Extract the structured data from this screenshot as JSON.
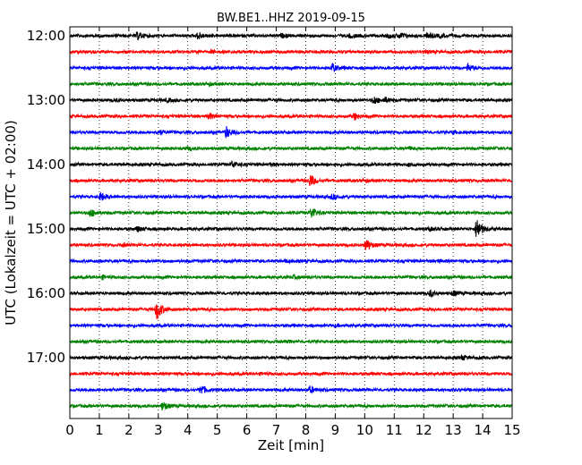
{
  "chart_data": {
    "type": "line",
    "title": "BW.BE1..HHZ 2019-09-15",
    "xlabel": "Zeit  [min]",
    "ylabel": "UTC (Lokalzeit = UTC + 02:00)",
    "xlim": [
      0,
      15
    ],
    "x_ticks": [
      "0",
      "1",
      "2",
      "3",
      "4",
      "5",
      "6",
      "7",
      "8",
      "9",
      "10",
      "11",
      "12",
      "13",
      "14",
      "15"
    ],
    "y_ticks": [
      {
        "label": "12:00",
        "hour": 12.0
      },
      {
        "label": "13:00",
        "hour": 13.0
      },
      {
        "label": "14:00",
        "hour": 14.0
      },
      {
        "label": "15:00",
        "hour": 15.0
      },
      {
        "label": "16:00",
        "hour": 16.0
      },
      {
        "label": "17:00",
        "hour": 17.0
      }
    ],
    "grid": "vertical dotted at each minute",
    "line_colors": [
      "#000000",
      "#ff0000",
      "#0000ff",
      "#008000"
    ],
    "series": [
      {
        "start": "12:00",
        "events": [
          [
            2.3,
            0.5
          ],
          [
            4.35,
            0.5
          ],
          [
            7.2,
            0.2
          ],
          [
            9.5,
            0.25
          ],
          [
            10.8,
            0.3
          ],
          [
            11.2,
            0.4
          ],
          [
            12.15,
            0.45
          ],
          [
            12.6,
            0.2
          ]
        ]
      },
      {
        "start": "12:15",
        "events": [
          [
            4.8,
            0.15
          ],
          [
            12.0,
            0.1
          ]
        ]
      },
      {
        "start": "12:30",
        "events": [
          [
            8.9,
            0.55
          ],
          [
            13.5,
            0.5
          ]
        ]
      },
      {
        "start": "12:45",
        "events": [
          [
            4.7,
            0.15
          ]
        ]
      },
      {
        "start": "13:00",
        "events": [
          [
            1.5,
            0.15
          ],
          [
            3.3,
            0.2
          ],
          [
            10.3,
            0.6
          ],
          [
            10.7,
            0.3
          ]
        ]
      },
      {
        "start": "13:15",
        "events": [
          [
            4.7,
            0.45
          ],
          [
            9.65,
            0.45
          ]
        ]
      },
      {
        "start": "13:30",
        "events": [
          [
            3.0,
            0.35
          ],
          [
            5.3,
            0.75
          ],
          [
            13.0,
            0.15
          ]
        ]
      },
      {
        "start": "13:45",
        "events": [
          [
            4.0,
            0.15
          ],
          [
            11.5,
            0.15
          ]
        ]
      },
      {
        "start": "14:00",
        "events": [
          [
            5.5,
            0.45
          ],
          [
            6.8,
            0.2
          ],
          [
            11.5,
            0.15
          ]
        ]
      },
      {
        "start": "14:15",
        "events": [
          [
            8.15,
            0.9
          ],
          [
            10.0,
            0.15
          ]
        ]
      },
      {
        "start": "14:30",
        "events": [
          [
            1.05,
            0.55
          ],
          [
            8.9,
            0.35
          ]
        ]
      },
      {
        "start": "14:45",
        "events": [
          [
            0.7,
            0.55
          ],
          [
            8.2,
            0.8
          ]
        ]
      },
      {
        "start": "15:00",
        "events": [
          [
            2.3,
            0.35
          ],
          [
            13.8,
            1.6
          ],
          [
            12.2,
            0.2
          ]
        ]
      },
      {
        "start": "15:15",
        "events": [
          [
            10.05,
            0.85
          ],
          [
            1.8,
            0.15
          ]
        ]
      },
      {
        "start": "15:30",
        "events": [
          [
            7.3,
            0.15
          ],
          [
            12.5,
            0.15
          ]
        ]
      },
      {
        "start": "15:45",
        "events": [
          [
            1.1,
            0.2
          ],
          [
            7.6,
            0.15
          ]
        ]
      },
      {
        "start": "16:00",
        "events": [
          [
            12.2,
            0.45
          ],
          [
            13.0,
            0.35
          ]
        ]
      },
      {
        "start": "16:15",
        "events": [
          [
            2.95,
            1.5
          ]
        ]
      },
      {
        "start": "16:30",
        "events": [
          [
            9.0,
            0.1
          ]
        ]
      },
      {
        "start": "16:45",
        "events": [
          [
            7.4,
            0.1
          ]
        ]
      },
      {
        "start": "17:00",
        "events": [
          [
            13.3,
            0.3
          ]
        ]
      },
      {
        "start": "17:15",
        "events": [
          [
            6.5,
            0.1
          ]
        ]
      },
      {
        "start": "17:30",
        "events": [
          [
            4.45,
            0.65
          ],
          [
            8.15,
            0.45
          ]
        ]
      },
      {
        "start": "17:45",
        "events": [
          [
            3.15,
            0.6
          ]
        ]
      }
    ]
  }
}
